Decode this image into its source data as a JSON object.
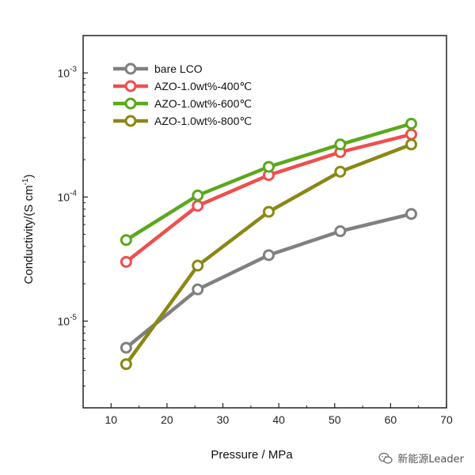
{
  "chart_data": {
    "type": "line",
    "title": "",
    "xlabel": "Pressure / MPa",
    "ylabel_main": "Conductivity/(S cm",
    "ylabel_sup": "-1",
    "ylabel_tail": ")",
    "xlim": [
      5,
      70
    ],
    "ylim": [
      2e-06,
      0.002
    ],
    "yscale": "log",
    "x_ticks": [
      10,
      20,
      30,
      40,
      50,
      60,
      70
    ],
    "y_ticks": [
      {
        "value": 1e-05,
        "base": "10",
        "exp": "-5"
      },
      {
        "value": 0.0001,
        "base": "10",
        "exp": "-4"
      },
      {
        "value": 0.001,
        "base": "10",
        "exp": "-3"
      }
    ],
    "legend_position": "top-left",
    "series": [
      {
        "name": "bare LCO",
        "color": "#808080",
        "x": [
          12.7,
          25.5,
          38.2,
          51.0,
          63.7
        ],
        "y": [
          6.1e-06,
          1.8e-05,
          3.4e-05,
          5.3e-05,
          7.3e-05
        ]
      },
      {
        "name": "AZO-1.0wt%-400℃",
        "color": "#f04e4e",
        "x": [
          12.7,
          25.5,
          38.2,
          51.0,
          63.7
        ],
        "y": [
          3e-05,
          8.5e-05,
          0.00015,
          0.00023,
          0.00032
        ]
      },
      {
        "name": "AZO-1.0wt%-600℃",
        "color": "#5aa81c",
        "x": [
          12.7,
          25.5,
          38.2,
          51.0,
          63.7
        ],
        "y": [
          4.5e-05,
          0.000103,
          0.000175,
          0.000265,
          0.00039
        ]
      },
      {
        "name": "AZO-1.0wt%-800℃",
        "color": "#8b8714",
        "x": [
          12.7,
          25.5,
          38.2,
          51.0,
          63.7
        ],
        "y": [
          4.5e-06,
          2.8e-05,
          7.6e-05,
          0.00016,
          0.000265
        ]
      }
    ]
  },
  "watermark": {
    "text": "新能源Leader",
    "icon": "wechat-icon"
  }
}
